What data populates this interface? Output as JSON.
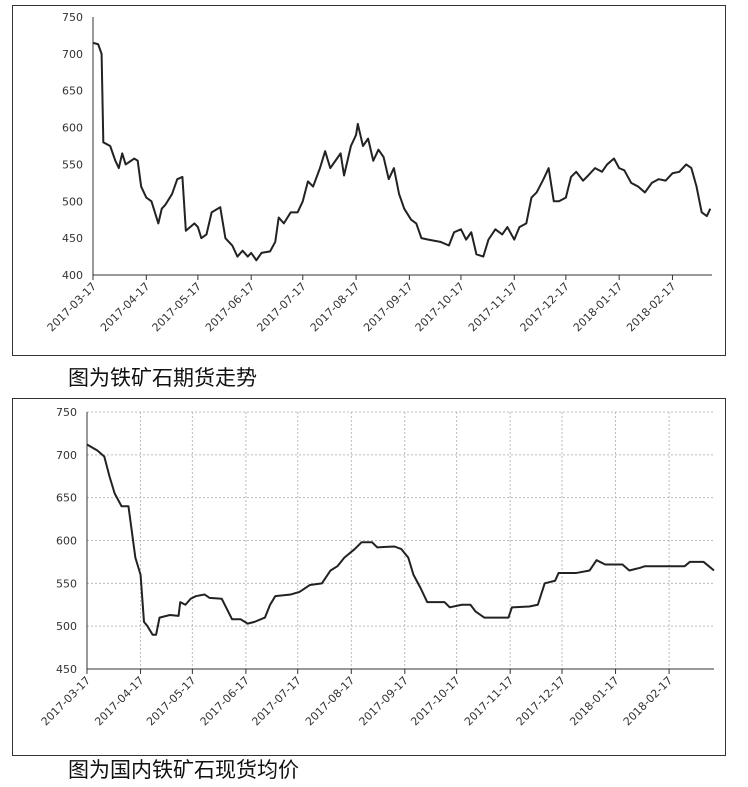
{
  "chart_data": [
    {
      "type": "line",
      "caption": "图为铁矿石期货走势",
      "grid": false,
      "x": [
        "2017-03-17",
        "2017-03-20",
        "2017-03-22",
        "2017-03-23",
        "2017-03-27",
        "2017-03-30",
        "2017-04-01",
        "2017-04-03",
        "2017-04-05",
        "2017-04-10",
        "2017-04-12",
        "2017-04-14",
        "2017-04-17",
        "2017-04-20",
        "2017-04-24",
        "2017-04-26",
        "2017-04-28",
        "2017-05-02",
        "2017-05-05",
        "2017-05-08",
        "2017-05-10",
        "2017-05-15",
        "2017-05-17",
        "2017-05-19",
        "2017-05-22",
        "2017-05-25",
        "2017-05-30",
        "2017-06-02",
        "2017-06-06",
        "2017-06-09",
        "2017-06-12",
        "2017-06-15",
        "2017-06-17",
        "2017-06-20",
        "2017-06-23",
        "2017-06-28",
        "2017-07-01",
        "2017-07-03",
        "2017-07-06",
        "2017-07-10",
        "2017-07-14",
        "2017-07-17",
        "2017-07-20",
        "2017-07-23",
        "2017-07-27",
        "2017-07-30",
        "2017-08-02",
        "2017-08-05",
        "2017-08-08",
        "2017-08-10",
        "2017-08-14",
        "2017-08-17",
        "2017-08-18",
        "2017-08-21",
        "2017-08-24",
        "2017-08-27",
        "2017-08-30",
        "2017-09-02",
        "2017-09-05",
        "2017-09-08",
        "2017-09-11",
        "2017-09-14",
        "2017-09-18",
        "2017-09-21",
        "2017-09-24",
        "2017-09-28",
        "2017-10-05",
        "2017-10-10",
        "2017-10-13",
        "2017-10-17",
        "2017-10-20",
        "2017-10-23",
        "2017-10-26",
        "2017-10-30",
        "2017-11-02",
        "2017-11-06",
        "2017-11-10",
        "2017-11-13",
        "2017-11-17",
        "2017-11-20",
        "2017-11-24",
        "2017-11-27",
        "2017-11-30",
        "2017-12-04",
        "2017-12-07",
        "2017-12-10",
        "2017-12-13",
        "2017-12-17",
        "2017-12-20",
        "2017-12-23",
        "2017-12-27",
        "2017-12-30",
        "2018-01-03",
        "2018-01-07",
        "2018-01-10",
        "2018-01-14",
        "2018-01-17",
        "2018-01-20",
        "2018-01-24",
        "2018-01-28",
        "2018-02-01",
        "2018-02-05",
        "2018-02-09",
        "2018-02-13",
        "2018-02-17",
        "2018-02-21",
        "2018-02-25",
        "2018-02-28",
        "2018-03-03",
        "2018-03-06",
        "2018-03-09",
        "2018-03-11"
      ],
      "series": [
        {
          "color": "#222222",
          "values": [
            715,
            713,
            700,
            580,
            575,
            555,
            545,
            565,
            550,
            558,
            555,
            520,
            505,
            500,
            470,
            490,
            495,
            510,
            530,
            533,
            460,
            470,
            465,
            450,
            455,
            485,
            492,
            450,
            440,
            425,
            433,
            425,
            430,
            420,
            430,
            432,
            445,
            478,
            470,
            485,
            485,
            500,
            527,
            520,
            545,
            568,
            545,
            555,
            565,
            535,
            575,
            590,
            605,
            575,
            585,
            555,
            570,
            560,
            530,
            545,
            510,
            490,
            475,
            470,
            450,
            448,
            445,
            440,
            458,
            462,
            448,
            458,
            428,
            425,
            448,
            462,
            455,
            465,
            448,
            465,
            470,
            505,
            512,
            530,
            545,
            500,
            500,
            505,
            533,
            540,
            528,
            535,
            545,
            540,
            550,
            558,
            545,
            542,
            525,
            520,
            512,
            525,
            530,
            528,
            538,
            540,
            550,
            545,
            520,
            485,
            480,
            490
          ]
        }
      ],
      "xlim": [
        "2017-03-17",
        "2018-03-12"
      ],
      "xticks": [
        "2017-03-17",
        "2017-04-17",
        "2017-05-17",
        "2017-06-17",
        "2017-07-17",
        "2017-08-17",
        "2017-09-17",
        "2017-10-17",
        "2017-11-17",
        "2017-12-17",
        "2018-01-17",
        "2018-02-17"
      ],
      "ylim": [
        400,
        750
      ],
      "yticks": [
        400,
        450,
        500,
        550,
        600,
        650,
        700,
        750
      ]
    },
    {
      "type": "line",
      "caption": "图为国内铁矿石现货均价",
      "grid": true,
      "x": [
        "2017-03-17",
        "2017-03-23",
        "2017-03-27",
        "2017-03-30",
        "2017-04-02",
        "2017-04-06",
        "2017-04-10",
        "2017-04-12",
        "2017-04-14",
        "2017-04-17",
        "2017-04-19",
        "2017-04-21",
        "2017-04-24",
        "2017-04-26",
        "2017-04-27",
        "2017-04-28",
        "2017-05-04",
        "2017-05-09",
        "2017-05-10",
        "2017-05-13",
        "2017-05-16",
        "2017-05-19",
        "2017-05-24",
        "2017-05-27",
        "2017-06-03",
        "2017-06-09",
        "2017-06-14",
        "2017-06-18",
        "2017-06-22",
        "2017-06-28",
        "2017-07-01",
        "2017-07-04",
        "2017-07-13",
        "2017-07-18",
        "2017-07-24",
        "2017-07-31",
        "2017-08-05",
        "2017-08-09",
        "2017-08-13",
        "2017-08-19",
        "2017-08-23",
        "2017-08-29",
        "2017-09-01",
        "2017-09-11",
        "2017-09-15",
        "2017-09-19",
        "2017-09-22",
        "2017-09-26",
        "2017-09-30",
        "2017-10-10",
        "2017-10-13",
        "2017-10-20",
        "2017-10-25",
        "2017-10-28",
        "2017-11-02",
        "2017-11-11",
        "2017-11-16",
        "2017-11-18",
        "2017-11-28",
        "2017-12-03",
        "2017-12-07",
        "2017-12-13",
        "2017-12-15",
        "2017-12-25",
        "2018-01-02",
        "2018-01-06",
        "2018-01-11",
        "2018-01-21",
        "2018-01-25",
        "2018-01-31",
        "2018-02-03",
        "2018-02-26",
        "2018-03-01",
        "2018-03-09",
        "2018-03-12",
        "2018-03-15"
      ],
      "series": [
        {
          "color": "#222222",
          "values": [
            712,
            705,
            698,
            675,
            655,
            640,
            640,
            610,
            580,
            560,
            505,
            500,
            490,
            490,
            500,
            510,
            513,
            512,
            528,
            525,
            532,
            535,
            537,
            533,
            532,
            508,
            508,
            503,
            505,
            510,
            525,
            535,
            537,
            540,
            548,
            550,
            565,
            570,
            580,
            590,
            598,
            598,
            592,
            593,
            590,
            580,
            560,
            545,
            528,
            528,
            522,
            525,
            525,
            517,
            510,
            510,
            510,
            522,
            523,
            525,
            550,
            553,
            562,
            562,
            565,
            577,
            572,
            572,
            565,
            568,
            570,
            570,
            575,
            575,
            570,
            565
          ]
        }
      ],
      "xlim": [
        "2017-03-17",
        "2018-03-15"
      ],
      "xticks": [
        "2017-03-17",
        "2017-04-17",
        "2017-05-17",
        "2017-06-17",
        "2017-07-17",
        "2017-08-17",
        "2017-09-17",
        "2017-10-17",
        "2017-11-17",
        "2017-12-17",
        "2018-01-17",
        "2018-02-17"
      ],
      "ylim": [
        450,
        750
      ],
      "yticks": [
        450,
        500,
        550,
        600,
        650,
        700,
        750
      ]
    }
  ]
}
